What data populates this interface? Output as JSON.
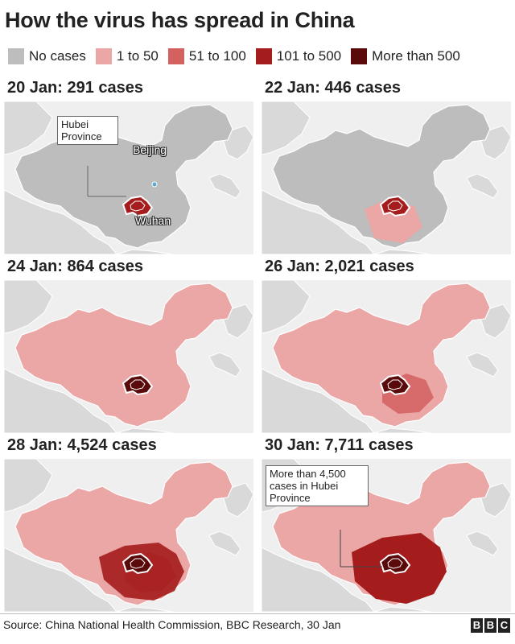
{
  "title": "How the virus has spread in China",
  "legend": [
    {
      "label": "No cases",
      "color": "#bdbdbd"
    },
    {
      "label": "1 to 50",
      "color": "#eba6a6"
    },
    {
      "label": "51 to 100",
      "color": "#d46060"
    },
    {
      "label": "101 to 500",
      "color": "#a51c1c"
    },
    {
      "label": "More than 500",
      "color": "#5a0a0a"
    }
  ],
  "colors": {
    "background_sea": "#efefef",
    "neighbour_land": "#d9d9d9",
    "no_cases": "#bdbdbd",
    "level_1": "#eba6a6",
    "level_2": "#d46060",
    "level_3": "#a51c1c",
    "level_4": "#5a0a0a"
  },
  "panels": [
    {
      "title": "20 Jan: 291 cases",
      "date": "20 Jan",
      "cases": 291,
      "national_level": "no_cases",
      "hubei_level": "level_3"
    },
    {
      "title": "22 Jan: 446 cases",
      "date": "22 Jan",
      "cases": 446,
      "national_level": "no_cases",
      "hubei_level": "level_3"
    },
    {
      "title": "24 Jan: 864 cases",
      "date": "24 Jan",
      "cases": 864,
      "national_level": "level_1",
      "hubei_level": "level_4"
    },
    {
      "title": "26 Jan: 2,021 cases",
      "date": "26 Jan",
      "cases": 2021,
      "national_level": "level_1",
      "hubei_level": "level_4"
    },
    {
      "title": "28 Jan: 4,524 cases",
      "date": "28 Jan",
      "cases": 4524,
      "national_level": "level_1",
      "hubei_level": "level_4"
    },
    {
      "title": "30 Jan: 7,711 cases",
      "date": "30 Jan",
      "cases": 7711,
      "national_level": "level_1",
      "hubei_level": "level_4"
    }
  ],
  "annotations": {
    "hubei_province": "Hubei Province",
    "beijing": "Beijing",
    "wuhan": "Wuhan",
    "hubei_note": "More than 4,500 cases in Hubei Province"
  },
  "source": "Source: China National Health Commission, BBC Research, 30 Jan",
  "logo": [
    "B",
    "B",
    "C"
  ]
}
